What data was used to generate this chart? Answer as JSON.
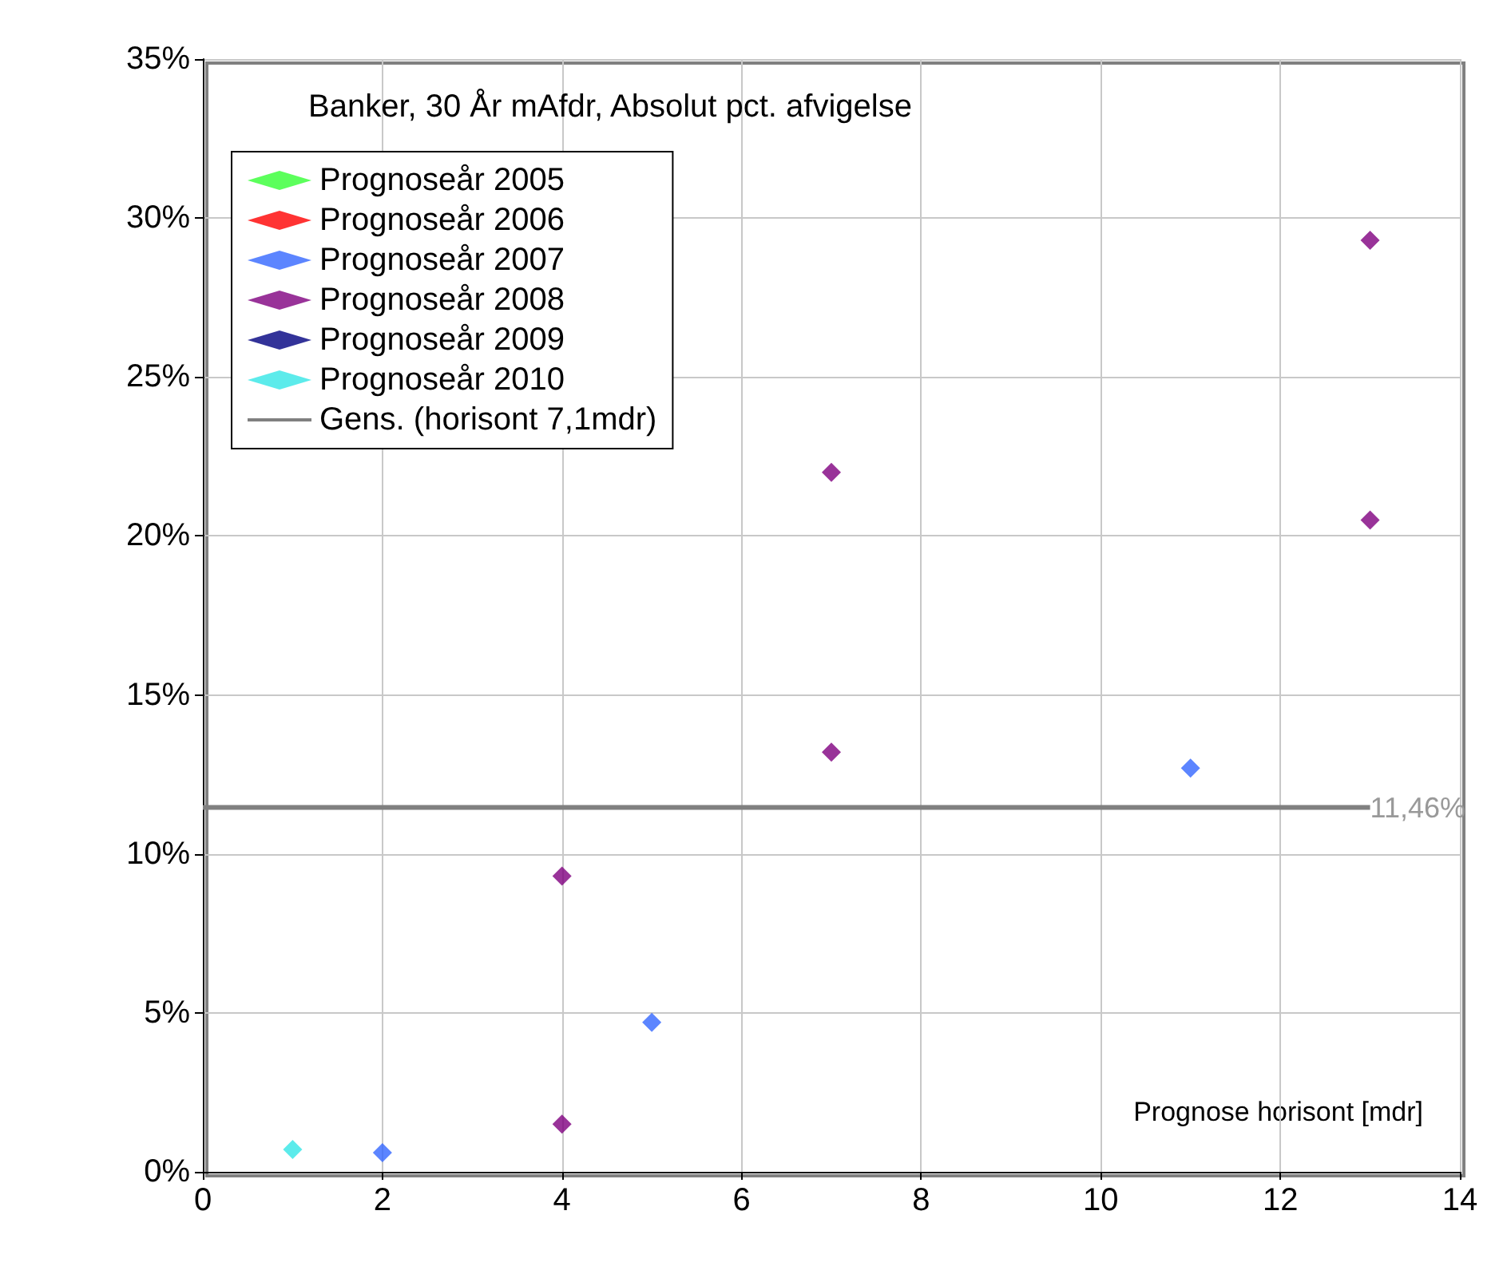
{
  "chart_data": {
    "type": "scatter",
    "title": "Banker, 30 År mAfdr, Absolut pct. afvigelse",
    "xlabel": "Prognose horisont [mdr]",
    "series": [
      {
        "name": "Prognoseår 2005",
        "color": "#33ff33"
      },
      {
        "name": "Prognoseår 2006",
        "color": "#ff0000"
      },
      {
        "name": "Prognoseår 2007",
        "color": "#3366ff",
        "x": [
          2,
          5,
          11
        ],
        "values": [
          0.6,
          4.7,
          12.7
        ]
      },
      {
        "name": "Prognoseår 2008",
        "color": "#800080",
        "x": [
          4,
          4,
          7,
          7,
          13,
          13
        ],
        "values": [
          1.5,
          9.3,
          13.2,
          22.0,
          20.5,
          29.3
        ]
      },
      {
        "name": "Prognoseår 2009",
        "color": "#000080"
      },
      {
        "name": "Prognoseår 2010",
        "color": "#33e6e6",
        "x": [
          1
        ],
        "values": [
          0.7
        ]
      },
      {
        "name": "Gens. (horisont 7,1mdr)",
        "type": "line",
        "color": "#808080",
        "marker": "none",
        "x": [
          0,
          13
        ],
        "values": [
          11.46,
          11.46
        ],
        "value_labels": [
          null,
          "11,46%"
        ]
      }
    ],
    "marker": "diamond",
    "xlim": [
      0,
      14
    ],
    "xticks": [
      0,
      2,
      4,
      6,
      8,
      10,
      12,
      14
    ],
    "ylim": [
      0,
      35
    ],
    "yticks": [
      {
        "value": 0,
        "label": "0%"
      },
      {
        "value": 5,
        "label": "5%"
      },
      {
        "value": 10,
        "label": "10%"
      },
      {
        "value": 15,
        "label": "15%"
      },
      {
        "value": 20,
        "label": "20%"
      },
      {
        "value": 25,
        "label": "25%"
      },
      {
        "value": 30,
        "label": "30%"
      },
      {
        "value": 35,
        "label": "35%"
      }
    ],
    "grid": true,
    "legend": "top left"
  }
}
